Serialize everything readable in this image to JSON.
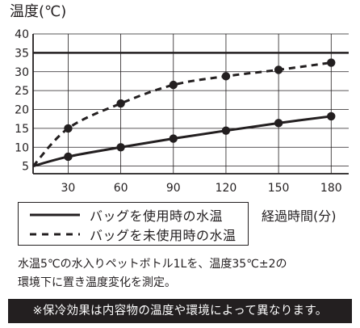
{
  "chart_data": {
    "type": "line",
    "ylabel": "温度(℃)",
    "xlabel": "経過時間(分)",
    "ylim": [
      3,
      40
    ],
    "xlim": [
      10,
      190
    ],
    "y_ticks": [
      5,
      10,
      15,
      20,
      25,
      30,
      35,
      40
    ],
    "x_ticks": [
      30,
      60,
      90,
      120,
      150,
      180
    ],
    "reference_line": 35,
    "grid": true,
    "legend_placement": "bottom-left",
    "series": [
      {
        "name": "バッグを使用時の水温",
        "style": "solid",
        "x": [
          10,
          30,
          60,
          90,
          120,
          150,
          180
        ],
        "values": [
          5,
          7.5,
          10,
          12.3,
          14.4,
          16.4,
          18.2
        ]
      },
      {
        "name": "バッグを未使用時の水温",
        "style": "dashed",
        "x": [
          10,
          30,
          60,
          90,
          120,
          150,
          180
        ],
        "values": [
          5,
          15,
          21.6,
          26.5,
          28.8,
          30.5,
          32.4
        ]
      }
    ]
  },
  "note_lines": [
    "水温5℃の水入りペットボトル1Lを、温度35℃±2の",
    "環境下に置き温度変化を測定。"
  ],
  "banner": "※保冷効果は内容物の温度や環境によって異なります。",
  "colors": {
    "ink": "#231f20",
    "grid": "#231f20",
    "background": "#ffffff"
  }
}
